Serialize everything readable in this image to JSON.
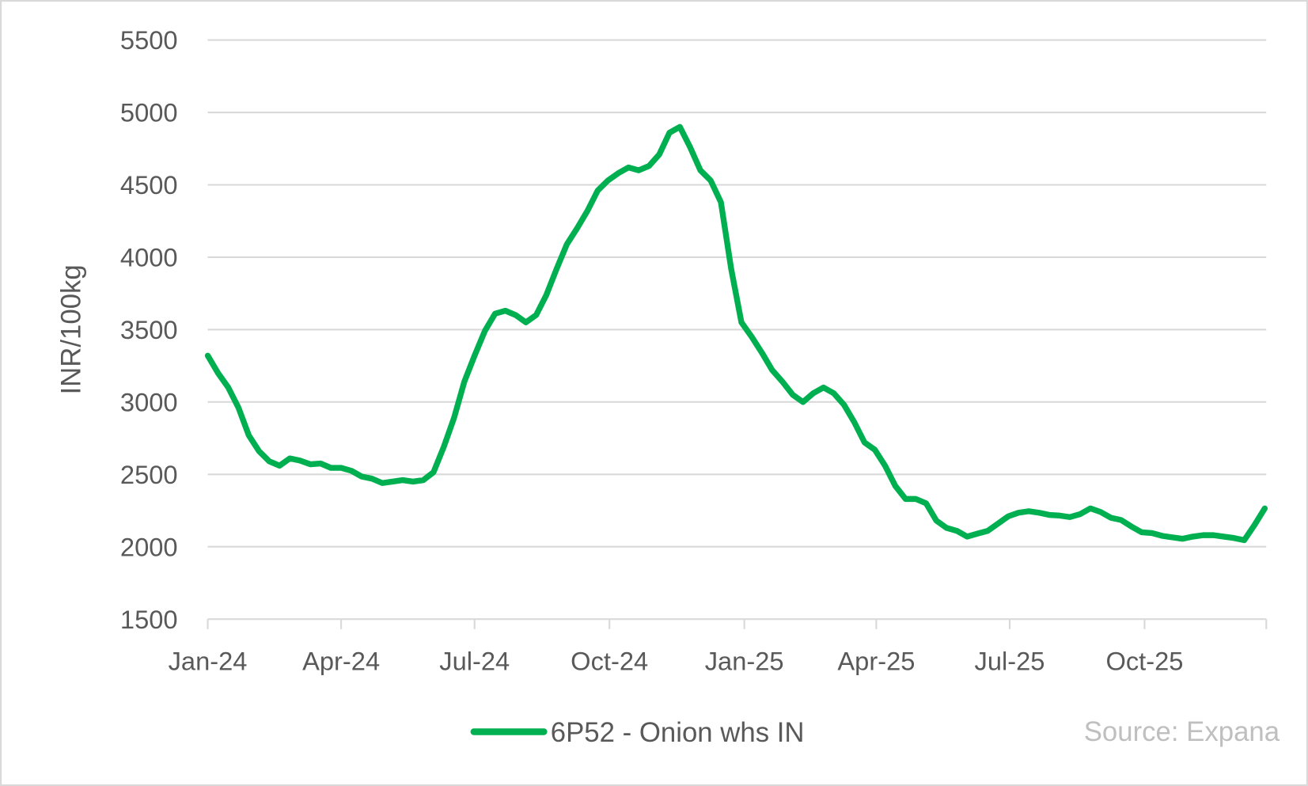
{
  "chart_data": {
    "type": "line",
    "title": "",
    "xlabel": "",
    "ylabel": "INR/100kg",
    "ylim": [
      1500,
      5500
    ],
    "yticks": [
      1500,
      2000,
      2500,
      3000,
      3500,
      4000,
      4500,
      5000,
      5500
    ],
    "ytick_labels": [
      "1500",
      "2000",
      "2500",
      "3000",
      "3500",
      "4000",
      "4500",
      "5000",
      "5500"
    ],
    "xticks": [
      "2024-01-01",
      "2024-04-01",
      "2024-07-01",
      "2024-10-01",
      "2025-01-01",
      "2025-04-01",
      "2025-07-01",
      "2025-10-01"
    ],
    "xtick_labels": [
      "Jan-24",
      "Apr-24",
      "Jul-24",
      "Oct-24",
      "Jan-25",
      "Apr-25",
      "Jul-25",
      "Oct-25"
    ],
    "xlim": [
      "2024-01-01",
      "2025-12-23"
    ],
    "grid": "horizontal",
    "legend_position": "bottom",
    "x_start": "2024-01-01",
    "x_step_days": 7,
    "series": [
      {
        "name": "6P52 - Onion whs IN",
        "color": "#00B050",
        "values": [
          3320,
          3200,
          3100,
          2960,
          2770,
          2660,
          2590,
          2560,
          2610,
          2595,
          2570,
          2575,
          2545,
          2545,
          2525,
          2485,
          2470,
          2440,
          2450,
          2460,
          2450,
          2460,
          2515,
          2690,
          2890,
          3140,
          3320,
          3490,
          3610,
          3630,
          3600,
          3550,
          3600,
          3740,
          3920,
          4090,
          4200,
          4320,
          4460,
          4530,
          4580,
          4620,
          4600,
          4630,
          4710,
          4860,
          4900,
          4760,
          4600,
          4530,
          4380,
          3920,
          3550,
          3450,
          3340,
          3220,
          3140,
          3050,
          3000,
          3060,
          3100,
          3060,
          2980,
          2860,
          2720,
          2670,
          2560,
          2420,
          2330,
          2330,
          2300,
          2180,
          2130,
          2110,
          2070,
          2090,
          2110,
          2160,
          2210,
          2235,
          2245,
          2235,
          2220,
          2215,
          2205,
          2225,
          2265,
          2240,
          2200,
          2185,
          2140,
          2100,
          2095,
          2075,
          2065,
          2055,
          2070,
          2080,
          2080,
          2070,
          2060,
          2045,
          2150,
          2265
        ]
      }
    ],
    "source": "Source: Expana"
  }
}
